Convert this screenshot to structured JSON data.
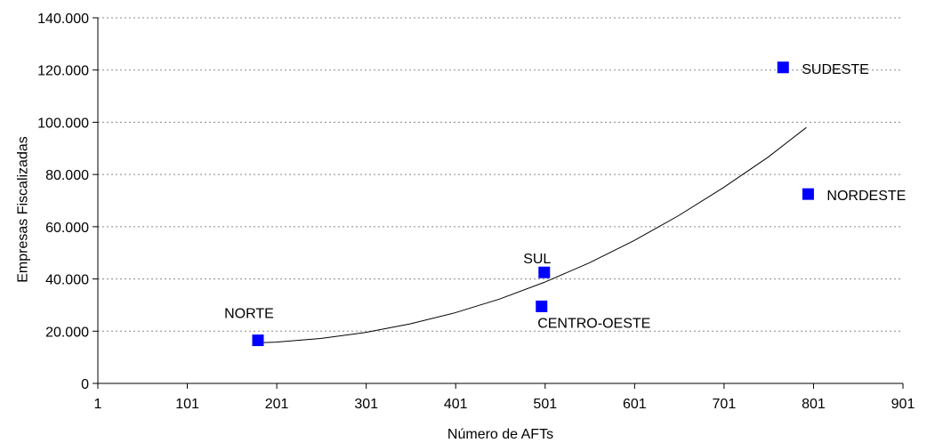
{
  "chart_data": {
    "type": "scatter",
    "xlabel": "Número de AFTs",
    "ylabel": "Empresas Fiscalizadas",
    "xlim": [
      1,
      901
    ],
    "ylim": [
      0,
      140000
    ],
    "x_ticks": [
      1,
      101,
      201,
      301,
      401,
      501,
      601,
      701,
      801,
      901
    ],
    "x_tick_labels": [
      "1",
      "101",
      "201",
      "301",
      "401",
      "501",
      "601",
      "701",
      "801",
      "901"
    ],
    "y_ticks": [
      0,
      20000,
      40000,
      60000,
      80000,
      100000,
      120000,
      140000
    ],
    "y_tick_labels": [
      "0",
      "20.000",
      "40.000",
      "60.000",
      "80.000",
      "100.000",
      "120.000",
      "140.000"
    ],
    "grid": "horizontal-dotted",
    "points": [
      {
        "label": "NORTE",
        "x": 180,
        "y": 16500
      },
      {
        "label": "SUL",
        "x": 500,
        "y": 42500
      },
      {
        "label": "CENTRO-OESTE",
        "x": 497,
        "y": 29500
      },
      {
        "label": "SUDESTE",
        "x": 767,
        "y": 121000
      },
      {
        "label": "NORDESTE",
        "x": 795,
        "y": 72500
      }
    ],
    "trendline": {
      "type": "polynomial",
      "x": [
        175,
        200,
        250,
        300,
        350,
        400,
        450,
        500,
        550,
        600,
        650,
        700,
        750,
        793
      ],
      "y": [
        15500,
        15800,
        17200,
        19500,
        22800,
        27000,
        32300,
        38700,
        46100,
        54600,
        64200,
        74900,
        86600,
        98000
      ]
    },
    "marker_color": "#0000ff",
    "line_color": "#000000"
  }
}
